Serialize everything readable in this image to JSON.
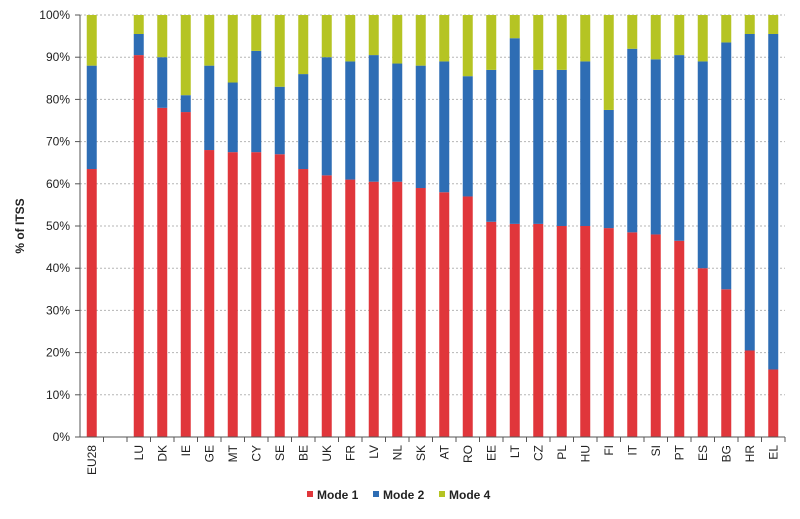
{
  "chart_data": {
    "type": "bar",
    "stacked": true,
    "title": "",
    "xlabel": "",
    "ylabel": "% of ITSS",
    "ylim": [
      0,
      100
    ],
    "ytick_suffix": "%",
    "ytick_step": 10,
    "grid": true,
    "legend_position": "bottom-center",
    "categories": [
      "EU28",
      "",
      "LU",
      "DK",
      "IE",
      "GE",
      "MT",
      "CY",
      "SE",
      "BE",
      "UK",
      "FR",
      "LV",
      "NL",
      "SK",
      "AT",
      "RO",
      "EE",
      "LT",
      "CZ",
      "PL",
      "HU",
      "FI",
      "IT",
      "SI",
      "PT",
      "ES",
      "BG",
      "HR",
      "EL"
    ],
    "series": [
      {
        "name": "Mode 1",
        "color": "#E0363B",
        "values": [
          63.5,
          null,
          90.5,
          78.0,
          77.0,
          68.0,
          67.5,
          67.5,
          67.0,
          63.5,
          62.0,
          61.0,
          60.5,
          60.5,
          59.0,
          58.0,
          57.0,
          51.0,
          50.5,
          50.5,
          50.0,
          50.0,
          49.5,
          48.5,
          48.0,
          46.5,
          40.0,
          35.0,
          20.5,
          16.0
        ]
      },
      {
        "name": "Mode 2",
        "color": "#2E6DB4",
        "values": [
          24.5,
          null,
          5.0,
          12.0,
          4.0,
          20.0,
          16.5,
          24.0,
          16.0,
          22.5,
          28.0,
          28.0,
          30.0,
          28.0,
          29.0,
          31.0,
          28.5,
          36.0,
          44.0,
          36.5,
          37.0,
          39.0,
          28.0,
          43.5,
          41.5,
          44.0,
          49.0,
          58.5,
          75.0,
          79.5
        ]
      },
      {
        "name": "Mode 4",
        "color": "#B5C423",
        "values": [
          12.0,
          null,
          4.5,
          10.0,
          19.0,
          12.0,
          16.0,
          8.5,
          17.0,
          14.0,
          10.0,
          11.0,
          9.5,
          11.5,
          12.0,
          11.0,
          14.5,
          13.0,
          5.5,
          13.0,
          13.0,
          11.0,
          22.5,
          8.0,
          10.5,
          9.5,
          11.0,
          6.5,
          4.5,
          4.5
        ]
      }
    ]
  }
}
